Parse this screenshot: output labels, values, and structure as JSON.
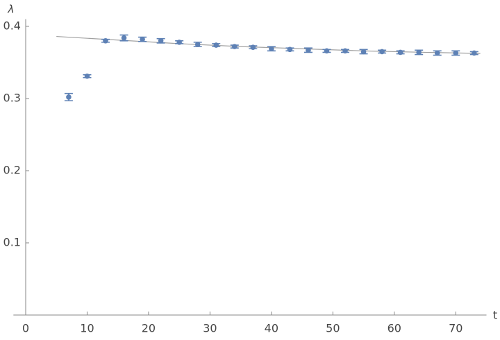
{
  "chart_data": {
    "type": "scatter",
    "x_label": "t",
    "y_label": "λ",
    "x": [
      7,
      10,
      13,
      16,
      19,
      22,
      25,
      28,
      31,
      34,
      37,
      40,
      43,
      46,
      49,
      52,
      55,
      58,
      61,
      64,
      67,
      70,
      73
    ],
    "values": [
      0.302,
      0.331,
      0.38,
      0.384,
      0.382,
      0.38,
      0.378,
      0.375,
      0.374,
      0.372,
      0.371,
      0.369,
      0.368,
      0.367,
      0.366,
      0.366,
      0.365,
      0.365,
      0.364,
      0.364,
      0.363,
      0.363,
      0.363
    ],
    "errors": [
      0.005,
      0.002,
      0.002,
      0.004,
      0.003,
      0.003,
      0.002,
      0.003,
      0.002,
      0.002,
      0.002,
      0.003,
      0.002,
      0.003,
      0.002,
      0.002,
      0.003,
      0.002,
      0.002,
      0.003,
      0.003,
      0.003,
      0.002
    ],
    "color": "#5e81b5",
    "fit": {
      "x": [
        5,
        15,
        25,
        35,
        45,
        55,
        65,
        74
      ],
      "values": [
        0.386,
        0.381,
        0.376,
        0.372,
        0.369,
        0.366,
        0.364,
        0.3625
      ],
      "color": "#a0a0a0"
    },
    "xlim": [
      -2,
      75
    ],
    "ylim": [
      0,
      0.41
    ],
    "xticks": [
      0,
      10,
      20,
      30,
      40,
      50,
      60,
      70
    ],
    "yticks": [
      0.1,
      0.2,
      0.3,
      0.4
    ]
  }
}
